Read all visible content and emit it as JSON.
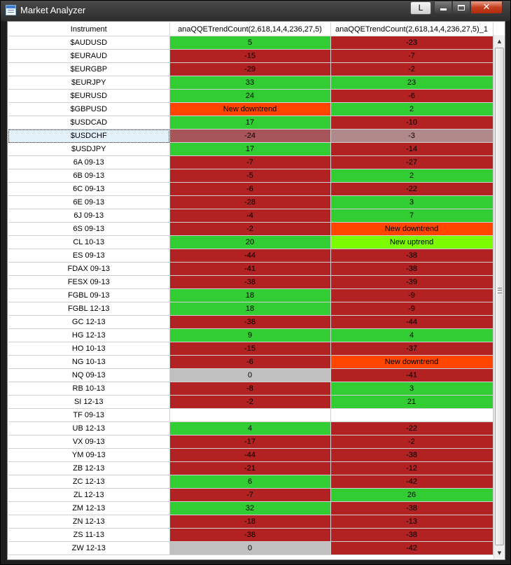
{
  "window": {
    "title": "Market Analyzer"
  },
  "toolbar": {
    "link_button": "L"
  },
  "columns": [
    "Instrument",
    "anaQQETrendCount(2,618,14,4,236,27,5)",
    "anaQQETrendCount(2,618,14,4,236,27,5)_1"
  ],
  "colors": {
    "red": "#b22222",
    "green": "#32cd32",
    "orange": "#ff4500",
    "lime": "#7cfc00",
    "gray": "#c0c0c0"
  },
  "selected_row": "$USDCHF",
  "rows": [
    {
      "instrument": "$AUDUSD",
      "c1": {
        "value": "5",
        "color": "green"
      },
      "c2": {
        "value": "-23",
        "color": "red"
      }
    },
    {
      "instrument": "$EURAUD",
      "c1": {
        "value": "-15",
        "color": "red"
      },
      "c2": {
        "value": "-7",
        "color": "red"
      }
    },
    {
      "instrument": "$EURGBP",
      "c1": {
        "value": "-29",
        "color": "red"
      },
      "c2": {
        "value": "-2",
        "color": "red"
      }
    },
    {
      "instrument": "$EURJPY",
      "c1": {
        "value": "33",
        "color": "green"
      },
      "c2": {
        "value": "23",
        "color": "green"
      }
    },
    {
      "instrument": "$EURUSD",
      "c1": {
        "value": "24",
        "color": "green"
      },
      "c2": {
        "value": "-6",
        "color": "red"
      }
    },
    {
      "instrument": "$GBPUSD",
      "c1": {
        "value": "New downtrend",
        "color": "orange"
      },
      "c2": {
        "value": "2",
        "color": "green"
      }
    },
    {
      "instrument": "$USDCAD",
      "c1": {
        "value": "17",
        "color": "green"
      },
      "c2": {
        "value": "-10",
        "color": "red"
      }
    },
    {
      "instrument": "$USDCHF",
      "c1": {
        "value": "-24",
        "color": "sel-red"
      },
      "c2": {
        "value": "-3",
        "color": "sel-gray"
      }
    },
    {
      "instrument": "$USDJPY",
      "c1": {
        "value": "17",
        "color": "green"
      },
      "c2": {
        "value": "-14",
        "color": "red"
      }
    },
    {
      "instrument": "6A 09-13",
      "c1": {
        "value": "-7",
        "color": "red"
      },
      "c2": {
        "value": "-27",
        "color": "red"
      }
    },
    {
      "instrument": "6B 09-13",
      "c1": {
        "value": "-5",
        "color": "red"
      },
      "c2": {
        "value": "2",
        "color": "green"
      }
    },
    {
      "instrument": "6C 09-13",
      "c1": {
        "value": "-6",
        "color": "red"
      },
      "c2": {
        "value": "-22",
        "color": "red"
      }
    },
    {
      "instrument": "6E 09-13",
      "c1": {
        "value": "-28",
        "color": "red"
      },
      "c2": {
        "value": "3",
        "color": "green"
      }
    },
    {
      "instrument": "6J 09-13",
      "c1": {
        "value": "-4",
        "color": "red"
      },
      "c2": {
        "value": "7",
        "color": "green"
      }
    },
    {
      "instrument": "6S 09-13",
      "c1": {
        "value": "-2",
        "color": "red"
      },
      "c2": {
        "value": "New downtrend",
        "color": "orange"
      }
    },
    {
      "instrument": "CL 10-13",
      "c1": {
        "value": "20",
        "color": "green"
      },
      "c2": {
        "value": "New uptrend",
        "color": "lime"
      }
    },
    {
      "instrument": "ES 09-13",
      "c1": {
        "value": "-44",
        "color": "red"
      },
      "c2": {
        "value": "-38",
        "color": "red"
      }
    },
    {
      "instrument": "FDAX 09-13",
      "c1": {
        "value": "-41",
        "color": "red"
      },
      "c2": {
        "value": "-38",
        "color": "red"
      }
    },
    {
      "instrument": "FESX 09-13",
      "c1": {
        "value": "-38",
        "color": "red"
      },
      "c2": {
        "value": "-39",
        "color": "red"
      }
    },
    {
      "instrument": "FGBL 09-13",
      "c1": {
        "value": "18",
        "color": "green"
      },
      "c2": {
        "value": "-9",
        "color": "red"
      }
    },
    {
      "instrument": "FGBL 12-13",
      "c1": {
        "value": "18",
        "color": "green"
      },
      "c2": {
        "value": "-9",
        "color": "red"
      }
    },
    {
      "instrument": "GC 12-13",
      "c1": {
        "value": "-38",
        "color": "red"
      },
      "c2": {
        "value": "-44",
        "color": "red"
      }
    },
    {
      "instrument": "HG 12-13",
      "c1": {
        "value": "9",
        "color": "green"
      },
      "c2": {
        "value": "4",
        "color": "green"
      }
    },
    {
      "instrument": "HO 10-13",
      "c1": {
        "value": "-15",
        "color": "red"
      },
      "c2": {
        "value": "-37",
        "color": "red"
      }
    },
    {
      "instrument": "NG 10-13",
      "c1": {
        "value": "-6",
        "color": "red"
      },
      "c2": {
        "value": "New downtrend",
        "color": "orange"
      }
    },
    {
      "instrument": "NQ 09-13",
      "c1": {
        "value": "0",
        "color": "gray"
      },
      "c2": {
        "value": "-41",
        "color": "red"
      }
    },
    {
      "instrument": "RB 10-13",
      "c1": {
        "value": "-8",
        "color": "red"
      },
      "c2": {
        "value": "3",
        "color": "green"
      }
    },
    {
      "instrument": "SI 12-13",
      "c1": {
        "value": "-2",
        "color": "red"
      },
      "c2": {
        "value": "21",
        "color": "green"
      }
    },
    {
      "instrument": "TF 09-13",
      "c1": {
        "value": "",
        "color": "white"
      },
      "c2": {
        "value": "",
        "color": "white"
      }
    },
    {
      "instrument": "UB 12-13",
      "c1": {
        "value": "4",
        "color": "green"
      },
      "c2": {
        "value": "-22",
        "color": "red"
      }
    },
    {
      "instrument": "VX 09-13",
      "c1": {
        "value": "-17",
        "color": "red"
      },
      "c2": {
        "value": "-2",
        "color": "red"
      }
    },
    {
      "instrument": "YM 09-13",
      "c1": {
        "value": "-44",
        "color": "red"
      },
      "c2": {
        "value": "-38",
        "color": "red"
      }
    },
    {
      "instrument": "ZB 12-13",
      "c1": {
        "value": "-21",
        "color": "red"
      },
      "c2": {
        "value": "-12",
        "color": "red"
      }
    },
    {
      "instrument": "ZC 12-13",
      "c1": {
        "value": "6",
        "color": "green"
      },
      "c2": {
        "value": "-42",
        "color": "red"
      }
    },
    {
      "instrument": "ZL 12-13",
      "c1": {
        "value": "-7",
        "color": "red"
      },
      "c2": {
        "value": "26",
        "color": "green"
      }
    },
    {
      "instrument": "ZM 12-13",
      "c1": {
        "value": "32",
        "color": "green"
      },
      "c2": {
        "value": "-38",
        "color": "red"
      }
    },
    {
      "instrument": "ZN 12-13",
      "c1": {
        "value": "-18",
        "color": "red"
      },
      "c2": {
        "value": "-13",
        "color": "red"
      }
    },
    {
      "instrument": "ZS 11-13",
      "c1": {
        "value": "-38",
        "color": "red"
      },
      "c2": {
        "value": "-38",
        "color": "red"
      }
    },
    {
      "instrument": "ZW 12-13",
      "c1": {
        "value": "0",
        "color": "gray"
      },
      "c2": {
        "value": "-42",
        "color": "red"
      }
    }
  ]
}
